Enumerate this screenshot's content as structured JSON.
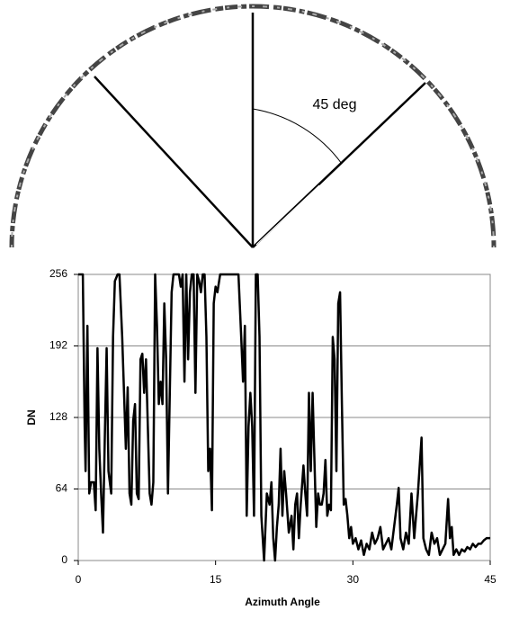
{
  "diagram": {
    "annotation": "45 deg"
  },
  "chart_data": {
    "type": "line",
    "xlabel": "Azimuth Angle",
    "ylabel": "DN",
    "color": "#000000",
    "x": [
      0,
      0.3,
      0.5,
      0.7,
      0.8,
      1.0,
      1.2,
      1.4,
      1.7,
      1.9,
      2.1,
      2.3,
      2.5,
      2.7,
      2.9,
      3.1,
      3.3,
      3.6,
      3.8,
      4.0,
      4.3,
      4.5,
      4.8,
      5.0,
      5.2,
      5.4,
      5.6,
      5.8,
      6.0,
      6.2,
      6.4,
      6.6,
      6.8,
      7.0,
      7.2,
      7.4,
      7.6,
      7.8,
      8.0,
      8.2,
      8.4,
      8.6,
      8.8,
      9.0,
      9.2,
      9.4,
      9.6,
      9.8,
      10.0,
      10.2,
      10.4,
      10.6,
      10.8,
      11.0,
      11.2,
      11.4,
      11.6,
      11.8,
      12.0,
      12.2,
      12.4,
      12.6,
      12.8,
      13.0,
      13.2,
      13.4,
      13.6,
      13.8,
      14.0,
      14.2,
      14.4,
      14.6,
      14.8,
      15.0,
      15.2,
      15.5,
      16.0,
      16.5,
      17.0,
      17.5,
      17.8,
      18.0,
      18.2,
      18.4,
      18.6,
      18.8,
      19.0,
      19.2,
      19.4,
      19.6,
      19.8,
      20.0,
      20.3,
      20.6,
      20.9,
      21.1,
      21.3,
      21.5,
      21.7,
      21.9,
      22.1,
      22.3,
      22.5,
      22.7,
      23.0,
      23.3,
      23.5,
      23.7,
      23.9,
      24.1,
      24.3,
      24.6,
      24.8,
      25.0,
      25.2,
      25.4,
      25.6,
      25.8,
      26.0,
      26.2,
      26.4,
      26.6,
      26.8,
      27.0,
      27.2,
      27.4,
      27.6,
      27.8,
      28.0,
      28.2,
      28.4,
      28.6,
      28.8,
      29.0,
      29.2,
      29.4,
      29.6,
      29.8,
      30.0,
      30.3,
      30.6,
      30.9,
      31.2,
      31.5,
      31.8,
      32.1,
      32.4,
      32.7,
      33.0,
      33.3,
      33.6,
      33.9,
      34.2,
      34.5,
      34.8,
      35.0,
      35.2,
      35.5,
      35.8,
      36.1,
      36.4,
      36.7,
      36.9,
      37.1,
      37.3,
      37.5,
      37.7,
      38.0,
      38.3,
      38.6,
      38.9,
      39.2,
      39.5,
      39.8,
      40.1,
      40.4,
      40.6,
      40.8,
      41.0,
      41.3,
      41.6,
      41.9,
      42.2,
      42.5,
      42.8,
      43.1,
      43.4,
      43.7,
      44.0,
      44.3,
      44.6,
      45.0
    ],
    "values": [
      256,
      256,
      256,
      120,
      80,
      210,
      60,
      70,
      70,
      45,
      190,
      100,
      60,
      25,
      110,
      190,
      80,
      60,
      200,
      250,
      256,
      256,
      200,
      150,
      100,
      155,
      60,
      50,
      125,
      140,
      60,
      55,
      180,
      185,
      150,
      180,
      120,
      60,
      50,
      70,
      256,
      210,
      140,
      160,
      140,
      230,
      180,
      60,
      150,
      240,
      256,
      256,
      256,
      256,
      245,
      256,
      160,
      256,
      180,
      240,
      256,
      256,
      150,
      256,
      250,
      240,
      256,
      256,
      200,
      80,
      100,
      45,
      230,
      245,
      240,
      256,
      256,
      256,
      256,
      256,
      200,
      160,
      210,
      40,
      120,
      150,
      120,
      40,
      256,
      256,
      200,
      40,
      0,
      60,
      50,
      70,
      20,
      0,
      30,
      50,
      100,
      40,
      80,
      60,
      25,
      40,
      10,
      50,
      60,
      20,
      50,
      85,
      60,
      40,
      150,
      80,
      150,
      90,
      30,
      60,
      50,
      50,
      60,
      90,
      40,
      50,
      45,
      200,
      180,
      80,
      230,
      240,
      140,
      50,
      55,
      40,
      20,
      30,
      15,
      20,
      10,
      18,
      5,
      15,
      10,
      25,
      15,
      20,
      30,
      10,
      15,
      20,
      10,
      30,
      50,
      65,
      20,
      10,
      25,
      15,
      60,
      20,
      40,
      60,
      85,
      110,
      20,
      10,
      5,
      25,
      15,
      20,
      5,
      10,
      15,
      55,
      20,
      30,
      5,
      10,
      5,
      10,
      8,
      12,
      10,
      15,
      12,
      15,
      15,
      18,
      20,
      20
    ],
    "xlim": [
      0,
      45
    ],
    "xticks": [
      0,
      15,
      30,
      45
    ],
    "ylim": [
      0,
      256
    ],
    "yticks": [
      0,
      64,
      128,
      192,
      256
    ],
    "grid": true
  }
}
